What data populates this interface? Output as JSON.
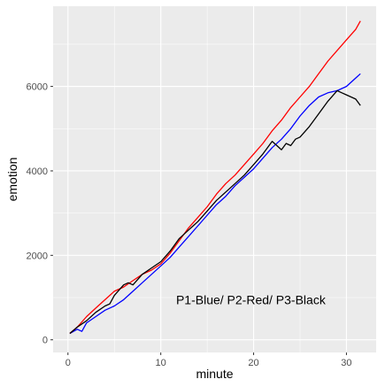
{
  "chart_data": {
    "type": "line",
    "title": "",
    "xlabel": "minute",
    "ylabel": "emotion",
    "xlim": [
      -1.6,
      33.2
    ],
    "ylim": [
      -300,
      7900
    ],
    "xticks": [
      0,
      10,
      20,
      30
    ],
    "xtick_labels": [
      "0",
      "10",
      "20",
      "30"
    ],
    "yticks": [
      0,
      2000,
      4000,
      6000
    ],
    "ytick_labels": [
      "0",
      "2000",
      "4000",
      "6000"
    ],
    "grid": true,
    "legend": "none",
    "annotation": "P1-Blue/ P2-Red/ P3-Black",
    "annotation_position": [
      19.7,
      950
    ],
    "panel_color": "#EBEBEB",
    "grid_color": "#FFFFFF",
    "series": [
      {
        "color": "#0000FF",
        "x": [
          0.2,
          1.0,
          1.5,
          2.0,
          3.0,
          4.0,
          5.0,
          6.0,
          7.0,
          8.0,
          9.0,
          10.0,
          11.0,
          12.0,
          13.0,
          14.0,
          15.0,
          16.0,
          17.0,
          18.0,
          19.0,
          20.0,
          21.0,
          22.0,
          23.0,
          24.0,
          25.0,
          26.0,
          27.0,
          28.0,
          29.0,
          30.0,
          31.0,
          31.5
        ],
        "y": [
          150,
          250,
          200,
          400,
          550,
          700,
          800,
          950,
          1150,
          1350,
          1550,
          1750,
          1950,
          2200,
          2450,
          2700,
          2950,
          3200,
          3400,
          3650,
          3850,
          4050,
          4300,
          4550,
          4750,
          5000,
          5300,
          5550,
          5750,
          5850,
          5900,
          6000,
          6200,
          6300
        ]
      },
      {
        "color": "#FF0000",
        "x": [
          0.2,
          1.0,
          2.0,
          3.0,
          4.0,
          5.0,
          6.0,
          7.0,
          8.0,
          9.0,
          10.0,
          11.0,
          12.0,
          13.0,
          14.0,
          15.0,
          16.0,
          17.0,
          18.0,
          19.0,
          20.0,
          21.0,
          22.0,
          23.0,
          24.0,
          25.0,
          26.0,
          27.0,
          28.0,
          29.0,
          30.0,
          31.0,
          31.5
        ],
        "y": [
          150,
          300,
          550,
          750,
          950,
          1150,
          1250,
          1400,
          1550,
          1650,
          1800,
          2050,
          2350,
          2650,
          2900,
          3150,
          3450,
          3700,
          3900,
          4150,
          4400,
          4650,
          4950,
          5200,
          5500,
          5750,
          6000,
          6300,
          6600,
          6850,
          7100,
          7350,
          7550
        ]
      },
      {
        "color": "#000000",
        "x": [
          0.2,
          1.0,
          2.0,
          3.0,
          4.0,
          4.5,
          5.0,
          6.0,
          6.5,
          7.0,
          8.0,
          9.0,
          10.0,
          11.0,
          12.0,
          13.0,
          14.0,
          15.0,
          16.0,
          17.0,
          18.0,
          19.0,
          20.0,
          21.0,
          22.0,
          22.5,
          23.0,
          23.5,
          24.0,
          24.5,
          25.0,
          26.0,
          27.0,
          28.0,
          29.0,
          29.5,
          30.0,
          31.0,
          31.5
        ],
        "y": [
          150,
          300,
          450,
          650,
          800,
          850,
          1050,
          1300,
          1350,
          1300,
          1550,
          1700,
          1850,
          2100,
          2400,
          2600,
          2800,
          3050,
          3300,
          3500,
          3700,
          3900,
          4150,
          4400,
          4700,
          4600,
          4500,
          4650,
          4600,
          4750,
          4800,
          5050,
          5350,
          5650,
          5900,
          5850,
          5800,
          5700,
          5550
        ]
      }
    ]
  }
}
